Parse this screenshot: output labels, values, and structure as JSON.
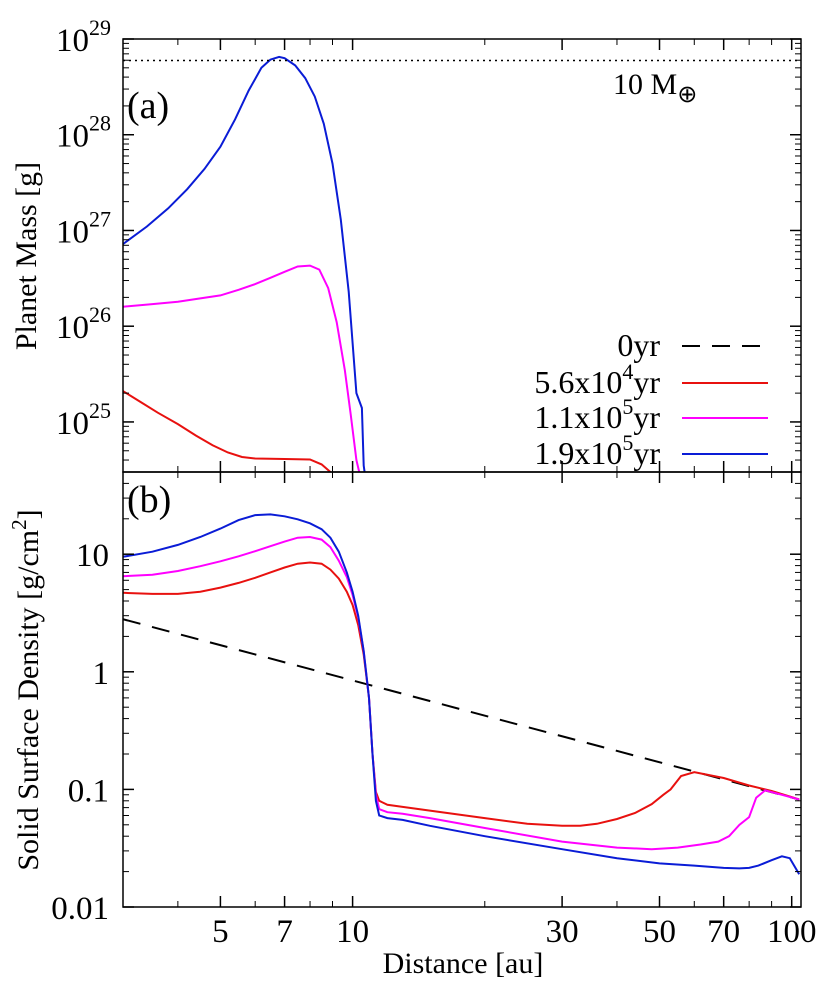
{
  "chart_data": [
    {
      "panel": "a",
      "type": "line",
      "panel_label": "(a)",
      "ylabel": "Planet Mass [g]",
      "xlabel": "",
      "xscale": "log",
      "yscale": "log",
      "xlim": [
        3.0,
        105
      ],
      "ylim": [
        3e+24,
        1e+29
      ],
      "yticks": [
        {
          "value": 1e+25,
          "base": "10",
          "exp": "25"
        },
        {
          "value": 1e+26,
          "base": "10",
          "exp": "26"
        },
        {
          "value": 1e+27,
          "base": "10",
          "exp": "27"
        },
        {
          "value": 1e+28,
          "base": "10",
          "exp": "28"
        },
        {
          "value": 1e+29,
          "base": "10",
          "exp": "29"
        }
      ],
      "reference_line": {
        "value": 5.97e+28,
        "label": "10 M",
        "label_sub": "⊕",
        "style": "dotted",
        "color": "#000000"
      },
      "series": [
        {
          "name": "5.6x10^4 yr",
          "color": "#e8110f",
          "x": [
            3.0,
            3.3,
            3.6,
            4.0,
            4.4,
            4.8,
            5.2,
            5.6,
            6.0,
            7.0,
            8.0,
            8.5,
            8.9
          ],
          "y": [
            2.1e+25,
            1.6e+25,
            1.25e+25,
            9.5e+24,
            7.2e+24,
            5.7e+24,
            4.8e+24,
            4.3e+24,
            4.15e+24,
            4.1e+24,
            4.05e+24,
            3.6e+24,
            3e+24
          ]
        },
        {
          "name": "1.1x10^5 yr",
          "color": "#ff00ff",
          "x": [
            3.0,
            3.5,
            4.0,
            4.5,
            5.0,
            5.5,
            6.0,
            6.5,
            7.0,
            7.5,
            8.0,
            8.4,
            8.8,
            9.2,
            9.6,
            9.9,
            10.2,
            10.35
          ],
          "y": [
            1.6e+26,
            1.7e+26,
            1.8e+26,
            1.95e+26,
            2.1e+26,
            2.4e+26,
            2.75e+26,
            3.2e+26,
            3.7e+26,
            4.2e+26,
            4.3e+26,
            3.9e+26,
            2.5e+26,
            1.1e+26,
            3.5e+25,
            1.2e+25,
            4e+24,
            3e+24
          ]
        },
        {
          "name": "1.9x10^5 yr",
          "color": "#0a1cd6",
          "x": [
            3.0,
            3.4,
            3.8,
            4.2,
            4.6,
            5.0,
            5.4,
            5.8,
            6.2,
            6.5,
            6.8,
            7.0,
            7.4,
            7.8,
            8.2,
            8.6,
            9.0,
            9.4,
            9.8,
            10.2,
            10.5,
            10.6,
            10.65
          ],
          "y": [
            7.2e+26,
            1.1e+27,
            1.7e+27,
            2.7e+27,
            4.4e+27,
            7.5e+27,
            1.45e+28,
            2.9e+28,
            5e+28,
            6.1e+28,
            6.5e+28,
            6.3e+28,
            5.3e+28,
            3.9e+28,
            2.5e+28,
            1.3e+28,
            5e+27,
            1.3e+27,
            2.3e+26,
            2e+25,
            1.4e+25,
            3.5e+24,
            3e+24
          ]
        }
      ]
    },
    {
      "panel": "b",
      "type": "line",
      "panel_label": "(b)",
      "xlabel": "Distance [au]",
      "ylabel": "Solid Surface Density [g/cm",
      "ylabel_sup": "2",
      "ylabel_end": "]",
      "xscale": "log",
      "yscale": "log",
      "xlim": [
        3.0,
        105
      ],
      "ylim": [
        0.01,
        50
      ],
      "yticks": [
        {
          "value": 0.01,
          "label": "0.01"
        },
        {
          "value": 0.1,
          "label": "0.1"
        },
        {
          "value": 1,
          "label": "1"
        },
        {
          "value": 10,
          "label": "10"
        }
      ],
      "xticks": [
        {
          "value": 5,
          "label": "5"
        },
        {
          "value": 7,
          "label": "7"
        },
        {
          "value": 10,
          "label": "10"
        },
        {
          "value": 30,
          "label": "30"
        },
        {
          "value": 50,
          "label": "50"
        },
        {
          "value": 70,
          "label": "70"
        },
        {
          "value": 100,
          "label": "100"
        }
      ],
      "series": [
        {
          "name": "0yr",
          "color": "#000000",
          "dash": true,
          "x": [
            3.0,
            104.0
          ],
          "y": [
            2.8,
            0.082
          ]
        },
        {
          "name": "5.6x10^4 yr",
          "color": "#e8110f",
          "x": [
            3.0,
            3.5,
            4.0,
            4.5,
            5.0,
            5.5,
            6.0,
            6.5,
            7.0,
            7.5,
            8.0,
            8.5,
            8.9,
            9.3,
            9.7,
            10.0,
            10.3,
            10.6,
            10.9,
            11.1,
            11.3,
            11.5,
            12.0,
            13.0,
            15.0,
            20.0,
            25.0,
            30.0,
            33.0,
            36.0,
            40.0,
            44.0,
            48.0,
            51.0,
            53.0,
            56.0,
            60.0,
            70.0,
            80.0,
            90.0,
            100.0,
            104.0
          ],
          "y": [
            4.7,
            4.6,
            4.6,
            4.8,
            5.2,
            5.7,
            6.3,
            7.0,
            7.7,
            8.3,
            8.5,
            8.3,
            7.4,
            6.2,
            4.8,
            3.7,
            2.5,
            1.4,
            0.6,
            0.2,
            0.095,
            0.08,
            0.074,
            0.071,
            0.066,
            0.057,
            0.051,
            0.049,
            0.049,
            0.051,
            0.056,
            0.063,
            0.075,
            0.09,
            0.1,
            0.13,
            0.14,
            0.125,
            0.108,
            0.097,
            0.086,
            0.082
          ]
        },
        {
          "name": "1.1x10^5 yr",
          "color": "#ff00ff",
          "x": [
            3.0,
            3.5,
            4.0,
            4.5,
            5.0,
            5.5,
            6.0,
            6.5,
            7.0,
            7.5,
            8.0,
            8.5,
            8.9,
            9.3,
            9.7,
            10.0,
            10.3,
            10.6,
            10.9,
            11.1,
            11.3,
            11.5,
            12.0,
            13.0,
            15.0,
            20.0,
            30.0,
            40.0,
            48.0,
            55.0,
            62.0,
            68.0,
            72.0,
            76.0,
            80.0,
            83.0,
            87.0,
            95.0,
            104.0
          ],
          "y": [
            6.5,
            6.7,
            7.2,
            7.9,
            8.7,
            9.6,
            10.6,
            11.7,
            12.8,
            13.8,
            14.0,
            13.3,
            11.5,
            8.8,
            6.4,
            4.5,
            2.9,
            1.5,
            0.6,
            0.2,
            0.09,
            0.068,
            0.064,
            0.062,
            0.057,
            0.047,
            0.036,
            0.032,
            0.031,
            0.032,
            0.034,
            0.036,
            0.04,
            0.05,
            0.058,
            0.085,
            0.098,
            0.09,
            0.082
          ]
        },
        {
          "name": "1.9x10^5 yr",
          "color": "#0a1cd6",
          "x": [
            3.0,
            3.5,
            4.0,
            4.5,
            5.0,
            5.5,
            6.0,
            6.5,
            7.0,
            7.5,
            8.0,
            8.5,
            8.9,
            9.3,
            9.7,
            10.0,
            10.3,
            10.6,
            10.9,
            11.1,
            11.3,
            11.5,
            12.0,
            13.0,
            15.0,
            20.0,
            30.0,
            40.0,
            50.0,
            60.0,
            70.0,
            76.0,
            80.0,
            84.0,
            90.0,
            95.0,
            99.0,
            104.0
          ],
          "y": [
            9.5,
            10.5,
            12.0,
            14.0,
            16.5,
            19.5,
            21.5,
            21.8,
            21.0,
            19.8,
            18.3,
            16.3,
            13.8,
            10.5,
            7.0,
            4.8,
            3.0,
            1.5,
            0.6,
            0.2,
            0.08,
            0.06,
            0.057,
            0.055,
            0.049,
            0.04,
            0.031,
            0.026,
            0.0235,
            0.0225,
            0.0215,
            0.0213,
            0.0215,
            0.0225,
            0.025,
            0.027,
            0.026,
            0.019
          ]
        }
      ]
    }
  ],
  "legend": [
    {
      "text": "0yr",
      "sup": "",
      "tail": "",
      "color": "#000000",
      "dash": true
    },
    {
      "text": "5.6x10",
      "sup": "4",
      "tail": "yr",
      "color": "#e8110f",
      "dash": false
    },
    {
      "text": "1.1x10",
      "sup": "5",
      "tail": "yr",
      "color": "#ff00ff",
      "dash": false
    },
    {
      "text": "1.9x10",
      "sup": "5",
      "tail": "yr",
      "color": "#0a1cd6",
      "dash": false
    }
  ]
}
